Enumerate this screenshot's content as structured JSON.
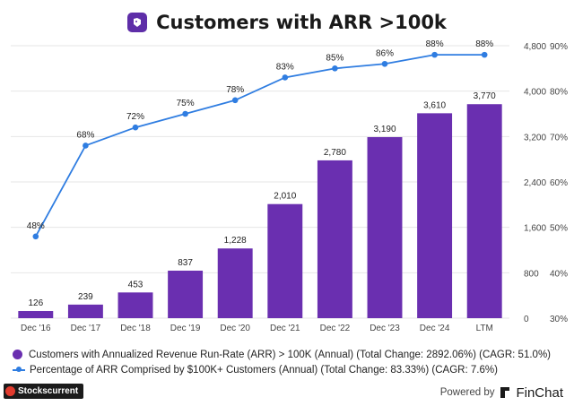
{
  "header": {
    "title": "Customers with ARR >100k",
    "icon": "finchat-bird-icon",
    "icon_color": "#5e2ea8"
  },
  "chart_data": {
    "type": "bar",
    "categories": [
      "Dec '16",
      "Dec '17",
      "Dec '18",
      "Dec '19",
      "Dec '20",
      "Dec '21",
      "Dec '22",
      "Dec '23",
      "Dec '24",
      "LTM"
    ],
    "series": [
      {
        "name": "Customers with Annualized Revenue Run-Rate (ARR) > 100K (Annual) (Total Change: 2892.06%) (CAGR: 51.0%)",
        "type": "bar",
        "axis": "left",
        "color": "#6a2fb0",
        "values": [
          126,
          239,
          453,
          837,
          1228,
          2010,
          2780,
          3190,
          3610,
          3770
        ],
        "labels": [
          "126",
          "239",
          "453",
          "837",
          "1,228",
          "2,010",
          "2,780",
          "3,190",
          "3,610",
          "3,770"
        ]
      },
      {
        "name": "Percentage of ARR Comprised by $100K+ Customers (Annual) (Total Change: 83.33%) (CAGR: 7.6%)",
        "type": "line",
        "axis": "right",
        "color": "#2f7de1",
        "values": [
          48,
          68,
          72,
          75,
          78,
          83,
          85,
          86,
          88,
          88
        ],
        "labels": [
          "48%",
          "68%",
          "72%",
          "75%",
          "78%",
          "83%",
          "85%",
          "86%",
          "88%",
          "88%"
        ]
      }
    ],
    "y_left": {
      "min": 0,
      "max": 4800,
      "ticks": [
        0,
        800,
        1600,
        2400,
        3200,
        4000,
        4800
      ],
      "tick_labels": [
        "0",
        "800",
        "1,600",
        "2,400",
        "3,200",
        "4,000",
        "4,800"
      ]
    },
    "y_right": {
      "min": 30,
      "max": 90,
      "ticks": [
        30,
        40,
        50,
        60,
        70,
        80,
        90
      ],
      "tick_labels": [
        "30%",
        "40%",
        "50%",
        "60%",
        "70%",
        "80%",
        "90%"
      ]
    },
    "grid": true,
    "legend_position": "bottom"
  },
  "footer": {
    "source_brand": "Stockscurrent",
    "powered_by": "Powered by",
    "provider": "FinChat"
  }
}
